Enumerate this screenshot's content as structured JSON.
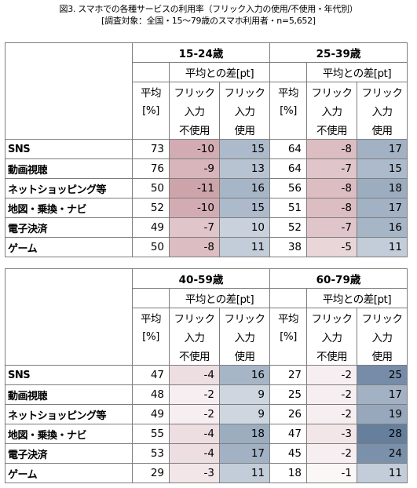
{
  "title": "図3. スマホでの各種サービスの利用率（フリック入力の使用/不使用・年代別）",
  "subtitle": "[調査対象：全国・15～79歳のスマホ利用者・n=5,652]",
  "header_labels": {
    "avg": "平均",
    "unit": "[%]",
    "diff": "平均との差[pt]",
    "flick": "フリック",
    "input": "入力",
    "nonuse": "不使用",
    "use": "使用"
  },
  "colors": {
    "negative": "#c99aa2",
    "positive": "#5d7898",
    "border": "#7d7d7d"
  },
  "chart_data": [
    {
      "type": "table",
      "groups": [
        "15-24歳",
        "25-39歳"
      ],
      "rows": [
        {
          "label": "SNS",
          "cells": [
            [
              73,
              -10,
              15
            ],
            [
              64,
              -8,
              17
            ]
          ]
        },
        {
          "label": "動画視聴",
          "cells": [
            [
              76,
              -9,
              13
            ],
            [
              64,
              -7,
              15
            ]
          ]
        },
        {
          "label": "ネットショッピング等",
          "cells": [
            [
              50,
              -11,
              16
            ],
            [
              56,
              -8,
              18
            ]
          ]
        },
        {
          "label": "地図・乗換・ナビ",
          "cells": [
            [
              52,
              -10,
              15
            ],
            [
              51,
              -8,
              17
            ]
          ]
        },
        {
          "label": "電子決済",
          "cells": [
            [
              49,
              -7,
              10
            ],
            [
              52,
              -7,
              16
            ]
          ]
        },
        {
          "label": "ゲーム",
          "cells": [
            [
              50,
              -8,
              11
            ],
            [
              38,
              -5,
              11
            ]
          ]
        }
      ]
    },
    {
      "type": "table",
      "groups": [
        "40-59歳",
        "60-79歳"
      ],
      "rows": [
        {
          "label": "SNS",
          "cells": [
            [
              47,
              -4,
              16
            ],
            [
              27,
              -2,
              25
            ]
          ]
        },
        {
          "label": "動画視聴",
          "cells": [
            [
              48,
              -2,
              9
            ],
            [
              25,
              -2,
              17
            ]
          ]
        },
        {
          "label": "ネットショッピング等",
          "cells": [
            [
              49,
              -2,
              9
            ],
            [
              26,
              -2,
              19
            ]
          ]
        },
        {
          "label": "地図・乗換・ナビ",
          "cells": [
            [
              55,
              -4,
              18
            ],
            [
              47,
              -3,
              28
            ]
          ]
        },
        {
          "label": "電子決済",
          "cells": [
            [
              53,
              -4,
              17
            ],
            [
              45,
              -2,
              24
            ]
          ]
        },
        {
          "label": "ゲーム",
          "cells": [
            [
              29,
              -3,
              11
            ],
            [
              18,
              -1,
              11
            ]
          ]
        }
      ]
    }
  ]
}
